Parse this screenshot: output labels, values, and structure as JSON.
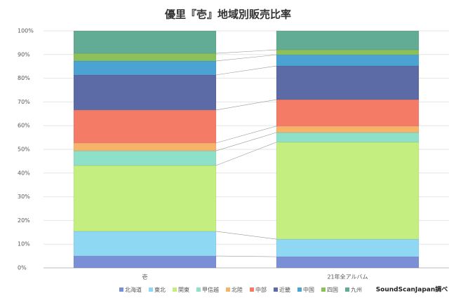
{
  "chart_data": {
    "type": "stacked_bar_100",
    "title": "優里『壱』地域別販売比率",
    "categories": [
      "壱",
      "21年全アルバム"
    ],
    "series": [
      {
        "name": "北海道",
        "color": "#7b8fd6",
        "values": [
          5.0,
          4.7
        ]
      },
      {
        "name": "東北",
        "color": "#8ed8f4",
        "values": [
          10.4,
          7.4
        ]
      },
      {
        "name": "関東",
        "color": "#c4ee7f",
        "values": [
          27.8,
          40.9
        ]
      },
      {
        "name": "甲信越",
        "color": "#8fe0c9",
        "values": [
          6.2,
          4.1
        ]
      },
      {
        "name": "北陸",
        "color": "#f7b36a",
        "values": [
          3.3,
          2.7
        ]
      },
      {
        "name": "中部",
        "color": "#f47c66",
        "values": [
          13.9,
          11.2
        ]
      },
      {
        "name": "近畿",
        "color": "#5c6aa6",
        "values": [
          14.8,
          14.2
        ]
      },
      {
        "name": "中国",
        "color": "#4aa3d3",
        "values": [
          5.9,
          4.7
        ]
      },
      {
        "name": "四国",
        "color": "#8cc05a",
        "values": [
          3.2,
          2.1
        ]
      },
      {
        "name": "九州",
        "color": "#62ab94",
        "values": [
          9.5,
          8.0
        ]
      }
    ],
    "ylim": [
      0,
      100
    ],
    "yticks": [
      {
        "value": 0,
        "label": "0%"
      },
      {
        "value": 10,
        "label": "10%"
      },
      {
        "value": 20,
        "label": "20%"
      },
      {
        "value": 30,
        "label": "30%"
      },
      {
        "value": 40,
        "label": "40%"
      },
      {
        "value": 50,
        "label": "50%"
      },
      {
        "value": 60,
        "label": "60%"
      },
      {
        "value": 70,
        "label": "70%"
      },
      {
        "value": 80,
        "label": "80%"
      },
      {
        "value": 90,
        "label": "90%"
      },
      {
        "value": 100,
        "label": "100%"
      }
    ],
    "grid": true,
    "legend": "bottom",
    "annotation": "SoundScanJapan調べ"
  }
}
